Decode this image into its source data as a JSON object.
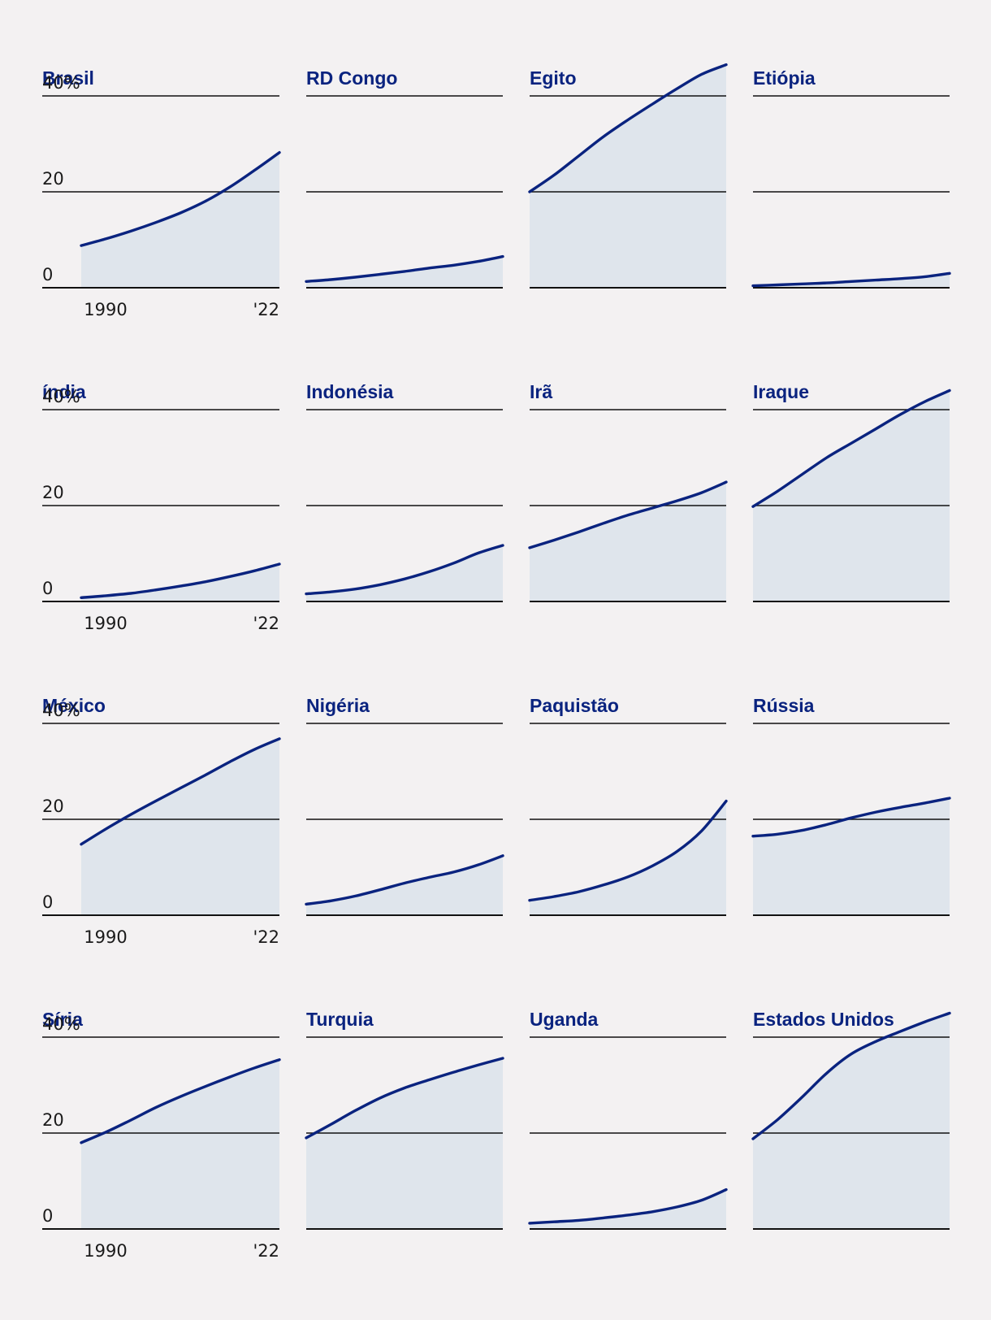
{
  "colors": {
    "background": "#f3f1f2",
    "line": "#0a237f",
    "area": "#dfe5ec",
    "title": "#0a237f",
    "axis": "#111111",
    "text": "#1a1a1a"
  },
  "chart_data": {
    "type": "area",
    "layout": "small-multiples 4x4",
    "ylim": [
      0,
      40
    ],
    "xlim": [
      1990,
      2022
    ],
    "y_ticks": [
      0,
      20,
      40
    ],
    "y_tick_labels": [
      "0",
      "20",
      "40%"
    ],
    "x_tick_labels": [
      "1990",
      "'22"
    ],
    "x": [
      1990,
      1994,
      1998,
      2002,
      2006,
      2010,
      2014,
      2018,
      2022
    ],
    "panels": [
      {
        "name": "Brasil",
        "values": [
          8.8,
          10.2,
          11.8,
          13.6,
          15.6,
          18.0,
          21.0,
          24.5,
          28.2
        ]
      },
      {
        "name": "RD Congo",
        "values": [
          1.3,
          1.7,
          2.2,
          2.8,
          3.4,
          4.1,
          4.7,
          5.5,
          6.5
        ]
      },
      {
        "name": "Egito",
        "values": [
          20.0,
          23.5,
          27.5,
          31.5,
          35.0,
          38.3,
          41.5,
          44.5,
          46.5
        ]
      },
      {
        "name": "Etiópia",
        "values": [
          0.4,
          0.6,
          0.8,
          1.0,
          1.3,
          1.6,
          1.9,
          2.3,
          3.0
        ]
      },
      {
        "name": "índia",
        "values": [
          0.8,
          1.2,
          1.7,
          2.4,
          3.2,
          4.1,
          5.2,
          6.4,
          7.8
        ]
      },
      {
        "name": "Indonésia",
        "values": [
          1.6,
          2.0,
          2.6,
          3.5,
          4.7,
          6.2,
          8.0,
          10.1,
          11.7
        ]
      },
      {
        "name": "Irã",
        "values": [
          11.2,
          12.8,
          14.5,
          16.3,
          18.0,
          19.5,
          21.0,
          22.7,
          24.9
        ]
      },
      {
        "name": "Iraque",
        "values": [
          19.8,
          23.0,
          26.5,
          30.0,
          33.0,
          36.0,
          39.0,
          41.7,
          44.0
        ]
      },
      {
        "name": "México",
        "values": [
          14.8,
          18.0,
          21.0,
          23.8,
          26.5,
          29.2,
          32.0,
          34.6,
          36.8
        ]
      },
      {
        "name": "Nigéria",
        "values": [
          2.3,
          3.0,
          4.0,
          5.3,
          6.7,
          7.9,
          9.0,
          10.5,
          12.4
        ]
      },
      {
        "name": "Paquistão",
        "values": [
          3.1,
          3.9,
          4.9,
          6.3,
          8.0,
          10.3,
          13.3,
          17.6,
          23.8
        ]
      },
      {
        "name": "Rússia",
        "values": [
          16.5,
          16.9,
          17.7,
          18.9,
          20.3,
          21.5,
          22.5,
          23.4,
          24.4
        ]
      },
      {
        "name": "Síria",
        "values": [
          18.0,
          20.2,
          22.7,
          25.3,
          27.6,
          29.7,
          31.7,
          33.6,
          35.3
        ]
      },
      {
        "name": "Turquia",
        "values": [
          19.0,
          21.8,
          24.7,
          27.3,
          29.4,
          31.1,
          32.7,
          34.2,
          35.6
        ]
      },
      {
        "name": "Uganda",
        "values": [
          1.2,
          1.5,
          1.8,
          2.3,
          2.9,
          3.6,
          4.6,
          6.0,
          8.2
        ]
      },
      {
        "name": "Estados Unidos",
        "values": [
          18.8,
          22.8,
          27.5,
          32.5,
          36.5,
          39.1,
          41.2,
          43.2,
          45.0
        ]
      }
    ]
  }
}
